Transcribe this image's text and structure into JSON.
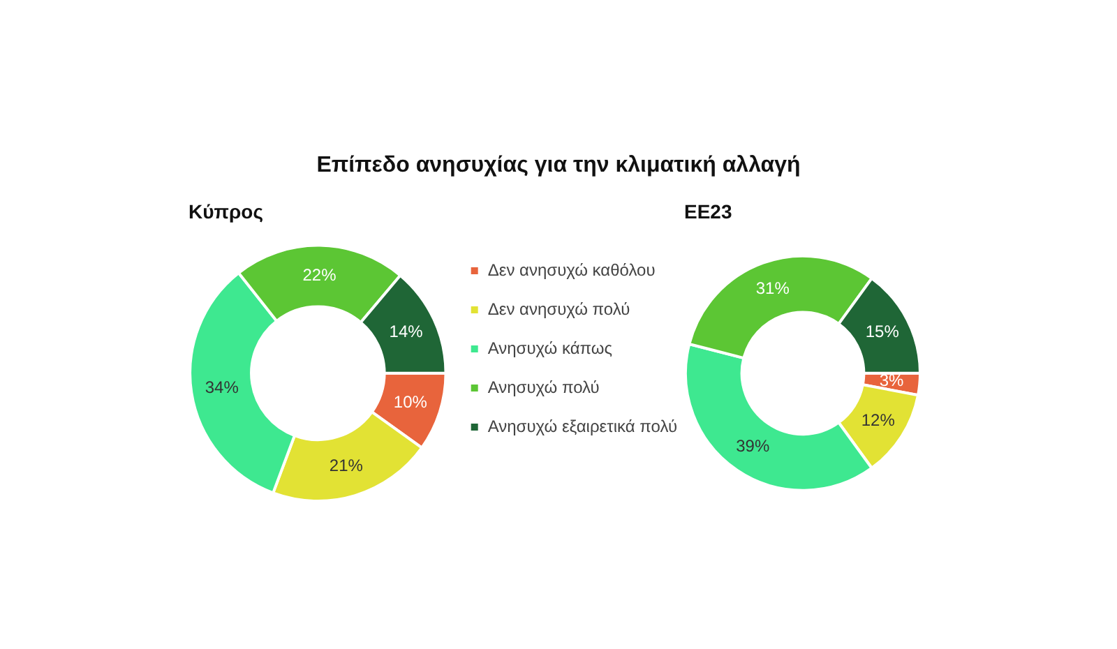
{
  "chart_data": [
    {
      "type": "donut",
      "title": "Επίπεδο ανησυχίας για την κλιματική αλλαγή",
      "subtitle": "Κύπρος",
      "categories": [
        "Δεν ανησυχώ καθόλου",
        "Δεν ανησυχώ πολύ",
        "Ανησυχώ κάπως",
        "Ανησυχώ πολύ",
        "Ανησυχώ εξαιρετικά πολύ"
      ],
      "values": [
        10,
        21,
        34,
        22,
        14
      ],
      "colors": [
        "#e8643c",
        "#e2e234",
        "#3ee890",
        "#5cc634",
        "#1f6636"
      ],
      "value_labels": [
        "10%",
        "21%",
        "34%",
        "22%",
        "14%"
      ],
      "legend": "right"
    },
    {
      "type": "donut",
      "subtitle": "ΕΕ23",
      "categories": [
        null,
        null,
        null,
        null,
        null
      ],
      "values": [
        3,
        12,
        39,
        31,
        15
      ],
      "colors": [
        "#e8643c",
        "#e2e234",
        "#3ee890",
        "#5cc634",
        "#1f6636"
      ],
      "value_labels": [
        "3%",
        "12%",
        "39%",
        "31%",
        "15%"
      ],
      "legend": false
    }
  ]
}
